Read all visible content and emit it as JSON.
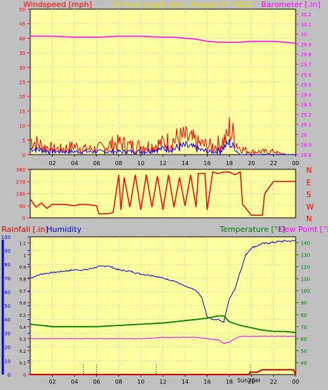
{
  "header": {
    "left_label": "Windspeed [mph]",
    "center_title": "24 hour graph day : August 17 2022",
    "right_label": "Barometer [.in]"
  },
  "colors": {
    "bg": "#c0c0c0",
    "plot_bg": "#ffffa0",
    "grid": "#c8c8c8",
    "wind": "#ff0000",
    "gust": "#0000ff",
    "wind_green": "#008000",
    "barometer": "#ff00ff",
    "direction": "#ff0000",
    "rain": "#cc0000",
    "humidity": "#0000cc",
    "temperature": "#008000",
    "dewpoint": "#ff00ff",
    "title_color": "#ffff00"
  },
  "x_tick_labels": [
    "02",
    "04",
    "06",
    "08",
    "10",
    "12",
    "14",
    "16",
    "18",
    "20",
    "22",
    "00"
  ],
  "chart_data": [
    {
      "id": "wind_baro",
      "type": "line",
      "x_unit": "hour",
      "x_range": [
        0,
        24
      ],
      "left_axis": {
        "label": "Windspeed [mph]",
        "range": [
          0,
          50
        ],
        "ticks": [
          "0",
          "5",
          "10",
          "15",
          "20",
          "25",
          "30",
          "35",
          "40",
          "45",
          "50"
        ]
      },
      "right_axis": {
        "label": "Barometer [.in]",
        "range": [
          28.8,
          30.25
        ],
        "ticks": [
          "28.8",
          "28.9",
          "29",
          "29.1",
          "29.2",
          "29.3",
          "29.4",
          "29.5",
          "29.6",
          "29.7",
          "29.8",
          "29.9",
          "30",
          "30.1",
          "30.2"
        ]
      },
      "series": [
        {
          "key": "barometer",
          "axis": "right",
          "points": [
            [
              0,
              29.98
            ],
            [
              2,
              29.98
            ],
            [
              4,
              29.97
            ],
            [
              6,
              29.97
            ],
            [
              8,
              29.98
            ],
            [
              10,
              29.98
            ],
            [
              12,
              29.97
            ],
            [
              13,
              29.97
            ],
            [
              14,
              29.96
            ],
            [
              15,
              29.95
            ],
            [
              16,
              29.93
            ],
            [
              17,
              29.92
            ],
            [
              18,
              29.92
            ],
            [
              19,
              29.92
            ],
            [
              20,
              29.93
            ],
            [
              21,
              29.93
            ],
            [
              22,
              29.93
            ],
            [
              23,
              29.92
            ],
            [
              24,
              29.91
            ]
          ]
        },
        {
          "key": "wind",
          "axis": "left",
          "points": [
            [
              0,
              5
            ],
            [
              1,
              3
            ],
            [
              2,
              2
            ],
            [
              3,
              2
            ],
            [
              4,
              3
            ],
            [
              5,
              2
            ],
            [
              6,
              2
            ],
            [
              7,
              3
            ],
            [
              8,
              4
            ],
            [
              9,
              3
            ],
            [
              10,
              3
            ],
            [
              11,
              3
            ],
            [
              12,
              4
            ],
            [
              13,
              5
            ],
            [
              14,
              6
            ],
            [
              15,
              4
            ],
            [
              16,
              3
            ],
            [
              17,
              3
            ],
            [
              17.8,
              6
            ],
            [
              18,
              9
            ],
            [
              18.5,
              5
            ],
            [
              19,
              2
            ],
            [
              20,
              1
            ],
            [
              21,
              1
            ],
            [
              22,
              1
            ],
            [
              23,
              0
            ],
            [
              24,
              0
            ]
          ]
        },
        {
          "key": "gust",
          "axis": "left",
          "points": [
            [
              0,
              2
            ],
            [
              2,
              1
            ],
            [
              4,
              1
            ],
            [
              6,
              1
            ],
            [
              8,
              1
            ],
            [
              10,
              1
            ],
            [
              12,
              2
            ],
            [
              13,
              2
            ],
            [
              14,
              3
            ],
            [
              15,
              2
            ],
            [
              16,
              1
            ],
            [
              17,
              1
            ],
            [
              18,
              4
            ],
            [
              18.5,
              2
            ],
            [
              19,
              0
            ],
            [
              24,
              0
            ]
          ]
        }
      ]
    },
    {
      "id": "wind_direction",
      "type": "line",
      "x_unit": "hour",
      "x_range": [
        0,
        24
      ],
      "left_axis": {
        "range": [
          0,
          360
        ],
        "ticks": [
          "0",
          "90",
          "180",
          "270",
          "360"
        ]
      },
      "right_axis": {
        "ticks": [
          "N",
          "W",
          "S",
          "E",
          "N"
        ]
      },
      "series": [
        {
          "key": "direction",
          "axis": "left",
          "points": [
            [
              0,
              140
            ],
            [
              0.5,
              80
            ],
            [
              1,
              110
            ],
            [
              1.5,
              70
            ],
            [
              2,
              100
            ],
            [
              3,
              100
            ],
            [
              4,
              90
            ],
            [
              4.5,
              100
            ],
            [
              5,
              100
            ],
            [
              6,
              90
            ],
            [
              6.2,
              30
            ],
            [
              7,
              30
            ],
            [
              7.5,
              40
            ],
            [
              8,
              320
            ],
            [
              8.2,
              60
            ],
            [
              8.5,
              300
            ],
            [
              9,
              80
            ],
            [
              9.5,
              320
            ],
            [
              10,
              60
            ],
            [
              10.5,
              320
            ],
            [
              11,
              80
            ],
            [
              11.5,
              310
            ],
            [
              12,
              60
            ],
            [
              12.5,
              320
            ],
            [
              13,
              80
            ],
            [
              13.5,
              300
            ],
            [
              14,
              90
            ],
            [
              14.5,
              320
            ],
            [
              15,
              80
            ],
            [
              15.2,
              330
            ],
            [
              15.8,
              330
            ],
            [
              16,
              60
            ],
            [
              16.5,
              340
            ],
            [
              17,
              330
            ],
            [
              17.5,
              340
            ],
            [
              18,
              340
            ],
            [
              18.5,
              320
            ],
            [
              19,
              340
            ],
            [
              19.2,
              100
            ],
            [
              20,
              20
            ],
            [
              21,
              20
            ],
            [
              21.2,
              180
            ],
            [
              22,
              270
            ],
            [
              24,
              270
            ]
          ]
        }
      ]
    },
    {
      "id": "rain_humidity_temp",
      "type": "line",
      "x_unit": "hour",
      "x_range": [
        0,
        24
      ],
      "left_axis": {
        "label": "Humidity",
        "range": [
          0,
          100
        ],
        "ticks": [
          "0",
          "10",
          "20",
          "30",
          "40",
          "50",
          "60",
          "70",
          "80",
          "90",
          "100"
        ]
      },
      "left_axis_2": {
        "label": "Rainfall [.in]",
        "range": [
          0,
          1.15
        ],
        "ticks": [
          "0",
          "0.05",
          "0.1",
          "0.15",
          "0.2",
          "0.25",
          "0.3",
          "0.35",
          "0.4",
          "0.45",
          "0.5",
          "0.55",
          "0.6",
          "0.65",
          "0.7",
          "0.75",
          "0.8",
          "0.85",
          "0.9",
          "0.95",
          "1",
          "1.05",
          "1.1"
        ]
      },
      "right_axis": {
        "label": "Temperature [°F]",
        "label_2": "Dew Point [°F]",
        "range": [
          30,
          145
        ],
        "ticks": [
          "40",
          "50",
          "60",
          "70",
          "80",
          "90",
          "100",
          "110",
          "120",
          "130",
          "140"
        ]
      },
      "series": [
        {
          "key": "humidity",
          "axis": "left",
          "points": [
            [
              0,
              70
            ],
            [
              1,
              73
            ],
            [
              2,
              74
            ],
            [
              3,
              75
            ],
            [
              4,
              76
            ],
            [
              5,
              76
            ],
            [
              6,
              78
            ],
            [
              7,
              79
            ],
            [
              8,
              76
            ],
            [
              9,
              75
            ],
            [
              10,
              73
            ],
            [
              11,
              72
            ],
            [
              12,
              70
            ],
            [
              13,
              68
            ],
            [
              14,
              64
            ],
            [
              15,
              61
            ],
            [
              15.5,
              56
            ],
            [
              16,
              42
            ],
            [
              16.5,
              40
            ],
            [
              17,
              40
            ],
            [
              17.5,
              38
            ],
            [
              18,
              55
            ],
            [
              18.5,
              62
            ],
            [
              19,
              75
            ],
            [
              19.5,
              87
            ],
            [
              20,
              92
            ],
            [
              21,
              95
            ],
            [
              22,
              96
            ],
            [
              23,
              97
            ],
            [
              24,
              97
            ]
          ]
        },
        {
          "key": "temperature",
          "axis": "right",
          "points": [
            [
              0,
              72
            ],
            [
              2,
              70
            ],
            [
              4,
              70
            ],
            [
              6,
              70
            ],
            [
              8,
              71
            ],
            [
              10,
              72
            ],
            [
              12,
              73
            ],
            [
              13,
              74
            ],
            [
              14,
              75
            ],
            [
              15,
              76
            ],
            [
              16,
              77
            ],
            [
              17,
              79
            ],
            [
              17.5,
              79
            ],
            [
              18,
              74
            ],
            [
              19,
              71
            ],
            [
              20,
              69
            ],
            [
              21,
              67
            ],
            [
              22,
              66
            ],
            [
              23,
              66
            ],
            [
              24,
              65
            ]
          ]
        },
        {
          "key": "dewpoint",
          "axis": "right",
          "points": [
            [
              0,
              60
            ],
            [
              2,
              60
            ],
            [
              4,
              60
            ],
            [
              6,
              60
            ],
            [
              8,
              60
            ],
            [
              10,
              60
            ],
            [
              12,
              61
            ],
            [
              13,
              61
            ],
            [
              14,
              61
            ],
            [
              15,
              61
            ],
            [
              16,
              60
            ],
            [
              17,
              59
            ],
            [
              17.5,
              56
            ],
            [
              18,
              57
            ],
            [
              18.5,
              60
            ],
            [
              19,
              62
            ],
            [
              20,
              62
            ],
            [
              21,
              62
            ],
            [
              22,
              62
            ],
            [
              23,
              62
            ],
            [
              24,
              62
            ]
          ]
        },
        {
          "key": "rain",
          "axis": "left_2",
          "points": [
            [
              0,
              0
            ],
            [
              19.8,
              0
            ],
            [
              19.9,
              0.02
            ],
            [
              20.5,
              0.02
            ],
            [
              21,
              0.04
            ],
            [
              22,
              0.04
            ],
            [
              23,
              0.04
            ],
            [
              23.8,
              0.04
            ],
            [
              24,
              0
            ]
          ]
        }
      ],
      "date_label": "Sun28el"
    }
  ]
}
